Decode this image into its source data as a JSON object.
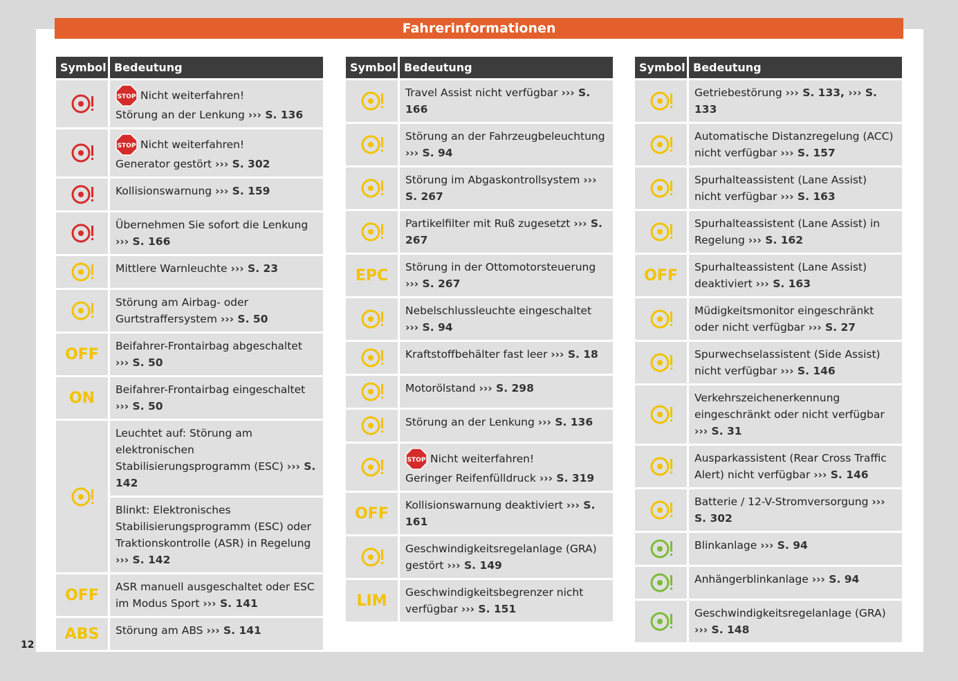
{
  "header": {
    "title": "Fahrerinformationen"
  },
  "page_number": "12",
  "stop_sign": "STOP",
  "tables": [
    {
      "headers": [
        "Symbol",
        "Bedeutung"
      ],
      "rows": [
        {
          "color": "#d62b2b",
          "cells": [
            {
              "stop": "Nicht weiterfahren!",
              "text": "Störung an der Lenkung",
              "ref": "››› S. 136"
            }
          ]
        },
        {
          "color": "#d62b2b",
          "cells": [
            {
              "stop": "Nicht weiterfahren!",
              "text": "Generator gestört",
              "ref": "››› S. 302"
            }
          ]
        },
        {
          "color": "#d62b2b",
          "cells": [
            {
              "text": "Kollisionswarnung",
              "ref": "››› S. 159"
            }
          ]
        },
        {
          "color": "#d62b2b",
          "cells": [
            {
              "text": "Übernehmen Sie sofort die Lenkung",
              "ref": "››› S. 166"
            }
          ]
        },
        {
          "color": "#f2c200",
          "cells": [
            {
              "text": "Mittlere Warnleuchte",
              "ref": "››› S. 23"
            }
          ]
        },
        {
          "color": "#f2c200",
          "cells": [
            {
              "text": "Störung am Airbag- oder Gurtstraffersystem",
              "ref": "››› S. 50"
            }
          ]
        },
        {
          "color": "#f2c200",
          "icon_text": "OFF",
          "cells": [
            {
              "text": "Beifahrer-Frontairbag abgeschaltet",
              "ref": "››› S. 50"
            }
          ]
        },
        {
          "color": "#f2c200",
          "icon_text": "ON",
          "cells": [
            {
              "text": "Beifahrer-Frontairbag eingeschaltet",
              "ref": "››› S. 50"
            }
          ]
        },
        {
          "color": "#f2c200",
          "cells": [
            {
              "text": "Leuchtet auf: Störung am elektronischen Stabilisierungsprogramm (ESC)",
              "ref": "››› S. 142"
            },
            {
              "text": "Blinkt: Elektronisches Stabilisierungsprogramm (ESC) oder Traktionskontrolle (ASR) in Regelung",
              "ref": "››› S. 142"
            }
          ]
        },
        {
          "color": "#f2c200",
          "icon_text": "OFF",
          "cells": [
            {
              "text": "ASR manuell ausgeschaltet oder ESC im Modus Sport",
              "ref": "››› S. 141"
            }
          ]
        },
        {
          "color": "#f2c200",
          "icon_text": "ABS",
          "cells": [
            {
              "text": "Störung am ABS",
              "ref": "››› S. 141"
            }
          ]
        }
      ]
    },
    {
      "headers": [
        "Symbol",
        "Bedeutung"
      ],
      "rows": [
        {
          "color": "#f2c200",
          "cells": [
            {
              "text": "Travel Assist nicht verfügbar",
              "ref": "››› S. 166"
            }
          ]
        },
        {
          "color": "#f2c200",
          "cells": [
            {
              "text": "Störung an der Fahrzeugbeleuchtung",
              "ref": "››› S. 94"
            }
          ]
        },
        {
          "color": "#f2c200",
          "cells": [
            {
              "text": "Störung im Abgaskontrollsystem",
              "ref": "››› S. 267"
            }
          ]
        },
        {
          "color": "#f2c200",
          "cells": [
            {
              "text": "Partikelfilter mit Ruß zugesetzt",
              "ref": "››› S. 267"
            }
          ]
        },
        {
          "color": "#f2c200",
          "icon_text": "EPC",
          "cells": [
            {
              "text": "Störung in der Ottomotorsteuerung",
              "ref": "››› S. 267"
            }
          ]
        },
        {
          "color": "#f2c200",
          "cells": [
            {
              "text": "Nebelschlussleuchte eingeschaltet",
              "ref": "››› S. 94"
            }
          ]
        },
        {
          "color": "#f2c200",
          "cells": [
            {
              "text": "Kraftstoffbehälter fast leer",
              "ref": "››› S. 18"
            }
          ]
        },
        {
          "color": "#f2c200",
          "cells": [
            {
              "text": "Motorölstand",
              "ref": "››› S. 298"
            }
          ]
        },
        {
          "color": "#f2c200",
          "cells": [
            {
              "text": "Störung an der Lenkung",
              "ref": "››› S. 136"
            }
          ]
        },
        {
          "color": "#f2c200",
          "cells": [
            {
              "stop": "Nicht weiterfahren!",
              "text": "Geringer Reifenfülldruck",
              "ref": "››› S. 319"
            }
          ]
        },
        {
          "color": "#f2c200",
          "icon_text": "OFF",
          "cells": [
            {
              "text": "Kollisionswarnung deaktiviert",
              "ref": "››› S. 161"
            }
          ]
        },
        {
          "color": "#f2c200",
          "cells": [
            {
              "text": "Geschwindigkeitsregelanlage (GRA) gestört",
              "ref": "››› S. 149"
            }
          ]
        },
        {
          "color": "#f2c200",
          "icon_text": "LIM",
          "cells": [
            {
              "text": "Geschwindigkeitsbegrenzer nicht verfügbar",
              "ref": "››› S. 151"
            }
          ]
        }
      ]
    },
    {
      "headers": [
        "Symbol",
        "Bedeutung"
      ],
      "rows": [
        {
          "color": "#f2c200",
          "cells": [
            {
              "text": "Getriebestörung",
              "ref": "››› S. 133, ››› S. 133"
            }
          ]
        },
        {
          "color": "#f2c200",
          "cells": [
            {
              "text": "Automatische Distanzregelung (ACC) nicht verfügbar",
              "ref": "››› S. 157"
            }
          ]
        },
        {
          "color": "#f2c200",
          "cells": [
            {
              "text": "Spurhalteassistent (Lane Assist) nicht verfügbar",
              "ref": "››› S. 163"
            }
          ]
        },
        {
          "color": "#f2c200",
          "cells": [
            {
              "text": "Spurhalteassistent (Lane Assist) in Regelung",
              "ref": "››› S. 162"
            }
          ]
        },
        {
          "color": "#f2c200",
          "icon_text": "OFF",
          "cells": [
            {
              "text": "Spurhalteassistent (Lane Assist) deaktiviert",
              "ref": "››› S. 163"
            }
          ]
        },
        {
          "color": "#f2c200",
          "cells": [
            {
              "text": "Müdigkeitsmonitor eingeschränkt oder nicht verfügbar",
              "ref": "››› S. 27"
            }
          ]
        },
        {
          "color": "#f2c200",
          "cells": [
            {
              "text": "Spurwechselassistent (Side Assist) nicht verfügbar",
              "ref": "››› S. 146"
            }
          ]
        },
        {
          "color": "#f2c200",
          "cells": [
            {
              "text": "Verkehrszeichenerkennung eingeschränkt oder nicht verfügbar",
              "ref": "››› S. 31"
            }
          ]
        },
        {
          "color": "#f2c200",
          "cells": [
            {
              "text": "Ausparkassistent (Rear Cross Traffic Alert) nicht verfügbar",
              "ref": "››› S. 146"
            }
          ]
        },
        {
          "color": "#f2c200",
          "cells": [
            {
              "text": "Batterie / 12-V-Stromversorgung",
              "ref": "››› S. 302"
            }
          ]
        },
        {
          "color": "#7cbb3a",
          "cells": [
            {
              "text": "Blinkanlage",
              "ref": "››› S. 94"
            }
          ]
        },
        {
          "color": "#7cbb3a",
          "cells": [
            {
              "text": "Anhängerblinkanlage",
              "ref": "››› S. 94"
            }
          ]
        },
        {
          "color": "#7cbb3a",
          "cells": [
            {
              "text": "Geschwindigkeitsregelanlage (GRA)",
              "ref": "››› S. 148"
            }
          ]
        }
      ]
    }
  ]
}
